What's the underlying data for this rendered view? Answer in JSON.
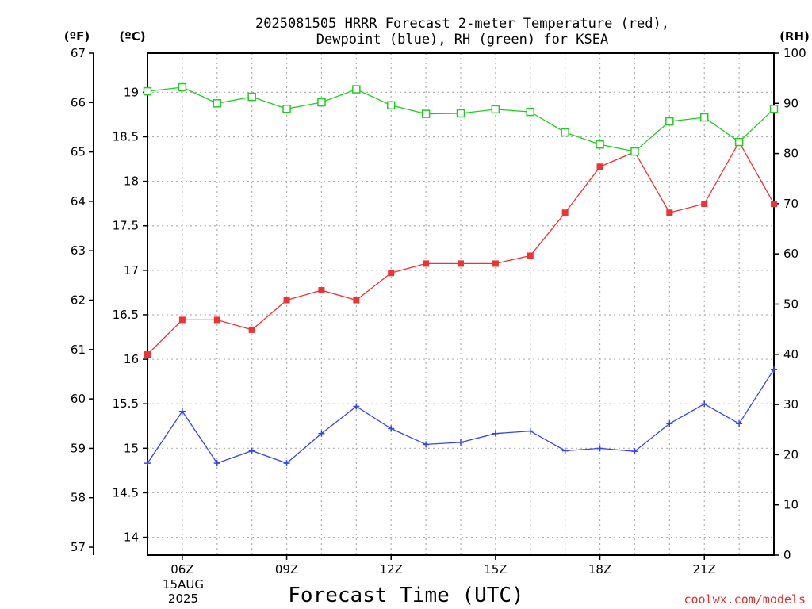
{
  "chart_data": {
    "type": "line",
    "title_line1": "2025081505 HRRR Forecast 2-meter Temperature (red),",
    "title_line2": "Dewpoint (blue), RH (green) for KSEA",
    "xlabel": "Forecast Time (UTC)",
    "credit": "coolwx.com/models",
    "axes": {
      "left_f_unit": "(ºF)",
      "left_c_unit": "(ºC)",
      "right_rh_unit": "(RH)",
      "f_ticks": [
        "67",
        "66",
        "65",
        "64",
        "63",
        "62",
        "61",
        "60",
        "59",
        "58",
        "57"
      ],
      "c_ticks": [
        "19",
        "18.5",
        "18",
        "17.5",
        "17",
        "16.5",
        "16",
        "15.5",
        "15",
        "14.5",
        "14"
      ],
      "rh_ticks": [
        "100",
        "90",
        "80",
        "70",
        "60",
        "50",
        "40",
        "30",
        "20",
        "10",
        "0"
      ],
      "f_range": [
        56.84,
        67.0
      ],
      "c_range": [
        13.8,
        19.44
      ],
      "rh_range": [
        0,
        100
      ]
    },
    "x_ticks": [
      {
        "label": "06Z",
        "hour": 6
      },
      {
        "label": "09Z",
        "hour": 9
      },
      {
        "label": "12Z",
        "hour": 12
      },
      {
        "label": "15Z",
        "hour": 15
      },
      {
        "label": "18Z",
        "hour": 18
      },
      {
        "label": "21Z",
        "hour": 21
      }
    ],
    "x_date_line1": "15AUG",
    "x_date_line2": "2025",
    "x": [
      5,
      6,
      7,
      8,
      9,
      10,
      11,
      12,
      13,
      14,
      15,
      16,
      17,
      18,
      19,
      20,
      21,
      22,
      23
    ],
    "x_range": [
      5,
      23
    ],
    "grid": true,
    "series": [
      {
        "color": "#ee3333",
        "units": "F",
        "marker": "filled-square",
        "values": [
          60.9,
          61.6,
          61.6,
          61.4,
          62.0,
          62.2,
          62.0,
          62.55,
          62.74,
          62.74,
          62.74,
          62.9,
          63.77,
          64.7,
          65.0,
          63.77,
          63.95,
          65.2,
          63.95
        ]
      },
      {
        "color": "#3344ee",
        "units": "F",
        "marker": "plus",
        "values": [
          58.7,
          59.75,
          58.7,
          58.95,
          58.7,
          59.3,
          59.85,
          59.4,
          59.08,
          59.12,
          59.3,
          59.35,
          58.95,
          59.0,
          58.94,
          59.5,
          59.9,
          59.5,
          60.6
        ]
      },
      {
        "color": "#22cc22",
        "units": "RH",
        "marker": "open-square",
        "values": [
          92.4,
          93.2,
          90.0,
          91.3,
          88.9,
          90.2,
          92.8,
          89.6,
          87.9,
          88.0,
          88.8,
          88.3,
          84.2,
          81.8,
          80.4,
          86.4,
          87.2,
          82.3,
          88.9
        ]
      }
    ]
  }
}
